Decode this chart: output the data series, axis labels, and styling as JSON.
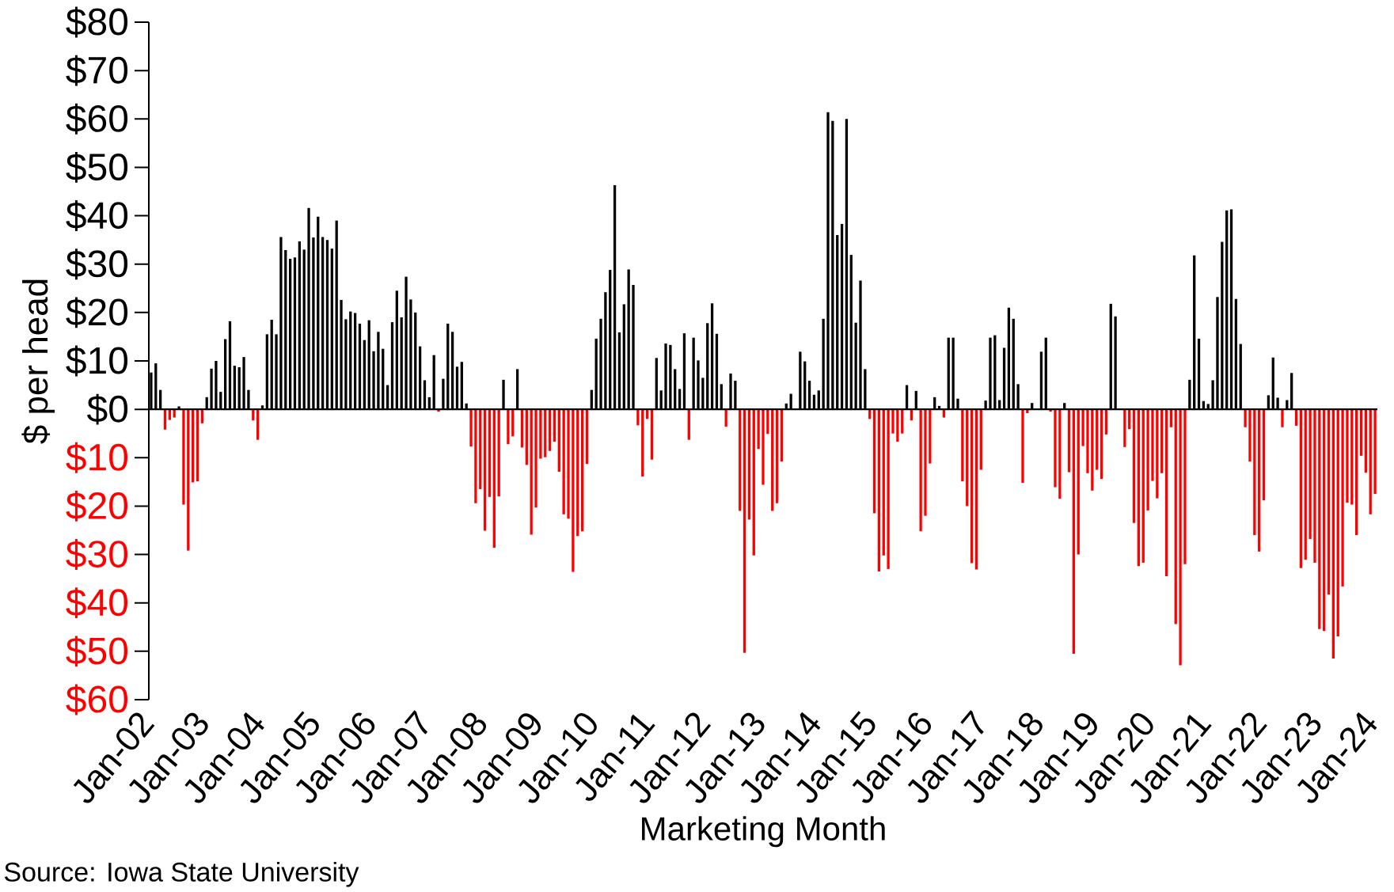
{
  "chart_data": {
    "type": "bar",
    "xlabel": "Marketing Month",
    "ylabel": "$ per head",
    "annotations": [
      "Source: Iowa State University"
    ],
    "xlim": [
      "2002-01",
      "2024-02"
    ],
    "xticks": [
      {
        "value": "2002-01",
        "label": "Jan-02"
      },
      {
        "value": "2003-01",
        "label": "Jan-03"
      },
      {
        "value": "2004-01",
        "label": "Jan-04"
      },
      {
        "value": "2005-01",
        "label": "Jan-05"
      },
      {
        "value": "2006-01",
        "label": "Jan-06"
      },
      {
        "value": "2007-01",
        "label": "Jan-07"
      },
      {
        "value": "2008-01",
        "label": "Jan-08"
      },
      {
        "value": "2009-01",
        "label": "Jan-09"
      },
      {
        "value": "2010-01",
        "label": "Jan-10"
      },
      {
        "value": "2011-01",
        "label": "Jan-11"
      },
      {
        "value": "2012-01",
        "label": "Jan-12"
      },
      {
        "value": "2013-01",
        "label": "Jan-13"
      },
      {
        "value": "2014-01",
        "label": "Jan-14"
      },
      {
        "value": "2015-01",
        "label": "Jan-15"
      },
      {
        "value": "2016-01",
        "label": "Jan-16"
      },
      {
        "value": "2017-01",
        "label": "Jan-17"
      },
      {
        "value": "2018-01",
        "label": "Jan-18"
      },
      {
        "value": "2019-01",
        "label": "Jan-19"
      },
      {
        "value": "2020-01",
        "label": "Jan-20"
      },
      {
        "value": "2021-01",
        "label": "Jan-21"
      },
      {
        "value": "2022-01",
        "label": "Jan-22"
      },
      {
        "value": "2023-01",
        "label": "Jan-23"
      },
      {
        "value": "2024-01",
        "label": "Jan-24"
      }
    ],
    "ylim": [
      -60,
      80
    ],
    "yticks": [
      {
        "value": -60,
        "label": "$60"
      },
      {
        "value": -50,
        "label": "$50"
      },
      {
        "value": -40,
        "label": "$40"
      },
      {
        "value": -30,
        "label": "$30"
      },
      {
        "value": -20,
        "label": "$20"
      },
      {
        "value": -10,
        "label": "$10"
      },
      {
        "value": 0,
        "label": "$0"
      },
      {
        "value": 10,
        "label": "$10"
      },
      {
        "value": 20,
        "label": "$20"
      },
      {
        "value": 30,
        "label": "$30"
      },
      {
        "value": 40,
        "label": "$40"
      },
      {
        "value": 50,
        "label": "$50"
      },
      {
        "value": 60,
        "label": "$60"
      },
      {
        "value": 70,
        "label": "$70"
      },
      {
        "value": 80,
        "label": "$80"
      }
    ],
    "x": [
      "2002-01",
      "2002-02",
      "2002-03",
      "2002-04",
      "2002-05",
      "2002-06",
      "2002-07",
      "2002-08",
      "2002-09",
      "2002-10",
      "2002-11",
      "2002-12",
      "2003-01",
      "2003-02",
      "2003-03",
      "2003-04",
      "2003-05",
      "2003-06",
      "2003-07",
      "2003-08",
      "2003-09",
      "2003-10",
      "2003-11",
      "2003-12",
      "2004-01",
      "2004-02",
      "2004-03",
      "2004-04",
      "2004-05",
      "2004-06",
      "2004-07",
      "2004-08",
      "2004-09",
      "2004-10",
      "2004-11",
      "2004-12",
      "2005-01",
      "2005-02",
      "2005-03",
      "2005-04",
      "2005-05",
      "2005-06",
      "2005-07",
      "2005-08",
      "2005-09",
      "2005-10",
      "2005-11",
      "2005-12",
      "2006-01",
      "2006-02",
      "2006-03",
      "2006-04",
      "2006-05",
      "2006-06",
      "2006-07",
      "2006-08",
      "2006-09",
      "2006-10",
      "2006-11",
      "2006-12",
      "2007-01",
      "2007-02",
      "2007-03",
      "2007-04",
      "2007-05",
      "2007-06",
      "2007-07",
      "2007-08",
      "2007-09",
      "2007-10",
      "2007-11",
      "2007-12",
      "2008-01",
      "2008-02",
      "2008-03",
      "2008-04",
      "2008-05",
      "2008-06",
      "2008-07",
      "2008-08",
      "2008-09",
      "2008-10",
      "2008-11",
      "2008-12",
      "2009-01",
      "2009-02",
      "2009-03",
      "2009-04",
      "2009-05",
      "2009-06",
      "2009-07",
      "2009-08",
      "2009-09",
      "2009-10",
      "2009-11",
      "2009-12",
      "2010-01",
      "2010-02",
      "2010-03",
      "2010-04",
      "2010-05",
      "2010-06",
      "2010-07",
      "2010-08",
      "2010-09",
      "2010-10",
      "2010-11",
      "2010-12",
      "2011-01",
      "2011-02",
      "2011-03",
      "2011-04",
      "2011-05",
      "2011-06",
      "2011-07",
      "2011-08",
      "2011-09",
      "2011-10",
      "2011-11",
      "2011-12",
      "2012-01",
      "2012-02",
      "2012-03",
      "2012-04",
      "2012-05",
      "2012-06",
      "2012-07",
      "2012-08",
      "2012-09",
      "2012-10",
      "2012-11",
      "2012-12",
      "2013-01",
      "2013-02",
      "2013-03",
      "2013-04",
      "2013-05",
      "2013-06",
      "2013-07",
      "2013-08",
      "2013-09",
      "2013-10",
      "2013-11",
      "2013-12",
      "2014-01",
      "2014-02",
      "2014-03",
      "2014-04",
      "2014-05",
      "2014-06",
      "2014-07",
      "2014-08",
      "2014-09",
      "2014-10",
      "2014-11",
      "2014-12",
      "2015-01",
      "2015-02",
      "2015-03",
      "2015-04",
      "2015-05",
      "2015-06",
      "2015-07",
      "2015-08",
      "2015-09",
      "2015-10",
      "2015-11",
      "2015-12",
      "2016-01",
      "2016-02",
      "2016-03",
      "2016-04",
      "2016-05",
      "2016-06",
      "2016-07",
      "2016-08",
      "2016-09",
      "2016-10",
      "2016-11",
      "2016-12",
      "2017-01",
      "2017-02",
      "2017-03",
      "2017-04",
      "2017-05",
      "2017-06",
      "2017-07",
      "2017-08",
      "2017-09",
      "2017-10",
      "2017-11",
      "2017-12",
      "2018-01",
      "2018-02",
      "2018-03",
      "2018-04",
      "2018-05",
      "2018-06",
      "2018-07",
      "2018-08",
      "2018-09",
      "2018-10",
      "2018-11",
      "2018-12",
      "2019-01",
      "2019-02",
      "2019-03",
      "2019-04",
      "2019-05",
      "2019-06",
      "2019-07",
      "2019-08",
      "2019-09",
      "2019-10",
      "2019-11",
      "2019-12",
      "2020-01",
      "2020-02",
      "2020-03",
      "2020-04",
      "2020-05",
      "2020-06",
      "2020-07",
      "2020-08",
      "2020-09",
      "2020-10",
      "2020-11",
      "2020-12",
      "2021-01",
      "2021-02",
      "2021-03",
      "2021-04",
      "2021-05",
      "2021-06",
      "2021-07",
      "2021-08",
      "2021-09",
      "2021-10",
      "2021-11",
      "2021-12",
      "2022-01",
      "2022-02",
      "2022-03",
      "2022-04",
      "2022-05",
      "2022-06",
      "2022-07",
      "2022-08",
      "2022-09",
      "2022-10",
      "2022-11",
      "2022-12",
      "2023-01",
      "2023-02",
      "2023-03",
      "2023-04",
      "2023-05",
      "2023-06",
      "2023-07",
      "2023-08",
      "2023-09",
      "2023-10",
      "2023-11",
      "2023-12",
      "2024-01"
    ],
    "values": [
      7.6,
      9.5,
      4,
      -4.2,
      -2.2,
      -1.7,
      0.6,
      -19.7,
      -29.2,
      -15.1,
      -14.9,
      -2.9,
      2.5,
      8.4,
      10,
      3.6,
      14.5,
      18.2,
      9,
      8.7,
      10.8,
      4,
      -2.3,
      -6.3,
      0.8,
      15.5,
      18.5,
      15.5,
      35.6,
      32.9,
      31.1,
      31.4,
      34.7,
      33,
      41.6,
      35.5,
      39.8,
      35.6,
      35,
      33.2,
      39,
      22.6,
      18.6,
      20.2,
      19.9,
      17.7,
      14.3,
      18.4,
      12,
      16,
      12.5,
      5,
      18,
      24.5,
      19,
      27.4,
      22.7,
      20,
      13,
      6,
      2.5,
      11.2,
      -0.5,
      6.3,
      17.7,
      16,
      8.8,
      9.8,
      1.2,
      -7.7,
      -19.4,
      -16.5,
      -25.1,
      -18.1,
      -28.6,
      -18,
      6.1,
      -7.2,
      -5.6,
      8.3,
      -7.9,
      -11.5,
      -25.9,
      -20.3,
      -10.2,
      -9.9,
      -8.6,
      -6.7,
      -12.9,
      -21.7,
      -22.6,
      -33.6,
      -26.2,
      -25.2,
      -11.3,
      4,
      14.6,
      18.7,
      24.2,
      28.8,
      46.3,
      15.9,
      21.7,
      28.9,
      25.7,
      -3.3,
      -13.9,
      -2,
      -10.4,
      10.6,
      3.9,
      13.6,
      13.3,
      8.3,
      4.2,
      15.7,
      -6.3,
      14.8,
      10.1,
      6.5,
      17.8,
      21.9,
      15.6,
      5.2,
      -3.6,
      7.4,
      5.9,
      -21,
      -50.3,
      -22.8,
      -30.2,
      -8.2,
      -15.6,
      -5.1,
      -21,
      -19.4,
      -10.8,
      1.2,
      3.2,
      null,
      11.9,
      9.9,
      5.9,
      3,
      3.9,
      18.7,
      61.4,
      59.6,
      36,
      38.3,
      60,
      31.9,
      17.9,
      26.6,
      8.3,
      -2,
      -21.5,
      -33.5,
      -30.2,
      -33,
      -5,
      -6.7,
      -5,
      5,
      -2.3,
      3.8,
      -25.2,
      -22,
      -11.2,
      2.5,
      0.7,
      -1.7,
      14.8,
      14.8,
      2.2,
      -14.9,
      -20,
      -31.8,
      -33.1,
      -12.5,
      1.8,
      14.8,
      15.3,
      1.9,
      12.7,
      21,
      18.7,
      5.2,
      -15.2,
      -0.8,
      1.3,
      null,
      11.9,
      14.8,
      -0.5,
      -16.1,
      -18.5,
      1.3,
      -13,
      -50.5,
      -30,
      -7.6,
      -13.2,
      -16.8,
      -12.5,
      -14.4,
      -5.2,
      21.8,
      19.2,
      null,
      -7.8,
      -4.1,
      -23.5,
      -32.4,
      -31.7,
      -20.9,
      -14.8,
      -18.4,
      -13.2,
      -34.5,
      -3.7,
      -44.4,
      -52.9,
      -32,
      6.1,
      31.8,
      14.6,
      1.7,
      1.1,
      6,
      23.2,
      34.6,
      41.1,
      41.3,
      22.8,
      13.5,
      -3.7,
      -10.8,
      -26,
      -29.4,
      -18.8,
      2.9,
      10.7,
      2.4,
      -3.7,
      1.9,
      7.5,
      -3.4,
      -32.8,
      -31.1,
      -26.8,
      -31.7,
      -45.4,
      -45.8,
      -38.3,
      -51.5,
      -46.9,
      -36.6,
      -19.3,
      -19.7,
      -26,
      -9.6,
      -13.1,
      -21.7,
      -17.5
    ],
    "colors": [
      "#000000",
      "#000000",
      "#000000",
      "#ff0000",
      "#ff0000",
      "#ff0000",
      "#000000",
      "#ff0000",
      "#ff0000",
      "#ff0000",
      "#ff0000",
      "#ff0000",
      "#000000",
      "#000000",
      "#000000",
      "#000000",
      "#000000",
      "#000000",
      "#000000",
      "#000000",
      "#000000",
      "#000000",
      "#ff0000",
      "#ff0000",
      "#000000",
      "#000000",
      "#000000",
      "#000000",
      "#000000",
      "#000000",
      "#000000",
      "#000000",
      "#000000",
      "#000000",
      "#000000",
      "#000000",
      "#000000",
      "#000000",
      "#000000",
      "#000000",
      "#000000",
      "#000000",
      "#000000",
      "#000000",
      "#000000",
      "#000000",
      "#000000",
      "#000000",
      "#000000",
      "#000000",
      "#000000",
      "#000000",
      "#000000",
      "#000000",
      "#000000",
      "#000000",
      "#000000",
      "#000000",
      "#000000",
      "#000000",
      "#000000",
      "#000000",
      "#ff0000",
      "#000000",
      "#000000",
      "#000000",
      "#000000",
      "#000000",
      "#000000",
      "#ff0000",
      "#ff0000",
      "#ff0000",
      "#ff0000",
      "#ff0000",
      "#ff0000",
      "#ff0000",
      "#000000",
      "#ff0000",
      "#ff0000",
      "#000000",
      "#ff0000",
      "#ff0000",
      "#ff0000",
      "#ff0000",
      "#ff0000",
      "#ff0000",
      "#ff0000",
      "#ff0000",
      "#ff0000",
      "#ff0000",
      "#ff0000",
      "#ff0000",
      "#ff0000",
      "#ff0000",
      "#ff0000",
      "#000000",
      "#000000",
      "#000000",
      "#000000",
      "#000000",
      "#000000",
      "#000000",
      "#000000",
      "#000000",
      "#000000",
      "#ff0000",
      "#ff0000",
      "#ff0000",
      "#ff0000",
      "#000000",
      "#000000",
      "#000000",
      "#000000",
      "#000000",
      "#000000",
      "#000000",
      "#ff0000",
      "#000000",
      "#000000",
      "#000000",
      "#000000",
      "#000000",
      "#000000",
      "#000000",
      "#ff0000",
      "#000000",
      "#000000",
      "#ff0000",
      "#ff0000",
      "#ff0000",
      "#ff0000",
      "#ff0000",
      "#ff0000",
      "#ff0000",
      "#ff0000",
      "#ff0000",
      "#ff0000",
      "#000000",
      "#000000",
      "#000000",
      "#000000",
      "#000000",
      "#000000",
      "#000000",
      "#000000",
      "#000000",
      "#000000",
      "#000000",
      "#000000",
      "#000000",
      "#000000",
      "#000000",
      "#000000",
      "#000000",
      "#000000",
      "#ff0000",
      "#ff0000",
      "#ff0000",
      "#ff0000",
      "#ff0000",
      "#ff0000",
      "#ff0000",
      "#ff0000",
      "#000000",
      "#ff0000",
      "#000000",
      "#ff0000",
      "#ff0000",
      "#ff0000",
      "#000000",
      "#000000",
      "#ff0000",
      "#000000",
      "#000000",
      "#000000",
      "#ff0000",
      "#ff0000",
      "#ff0000",
      "#ff0000",
      "#ff0000",
      "#000000",
      "#000000",
      "#000000",
      "#000000",
      "#000000",
      "#000000",
      "#000000",
      "#000000",
      "#ff0000",
      "#ff0000",
      "#000000",
      "#000000",
      "#000000",
      "#000000",
      "#ff0000",
      "#ff0000",
      "#ff0000",
      "#000000",
      "#ff0000",
      "#ff0000",
      "#ff0000",
      "#ff0000",
      "#ff0000",
      "#ff0000",
      "#ff0000",
      "#ff0000",
      "#ff0000",
      "#000000",
      "#000000",
      "#000000",
      "#ff0000",
      "#ff0000",
      "#ff0000",
      "#ff0000",
      "#ff0000",
      "#ff0000",
      "#ff0000",
      "#ff0000",
      "#ff0000",
      "#ff0000",
      "#ff0000",
      "#ff0000",
      "#ff0000",
      "#ff0000",
      "#000000",
      "#000000",
      "#000000",
      "#000000",
      "#000000",
      "#000000",
      "#000000",
      "#000000",
      "#000000",
      "#000000",
      "#000000",
      "#000000",
      "#ff0000",
      "#ff0000",
      "#ff0000",
      "#ff0000",
      "#ff0000",
      "#000000",
      "#000000",
      "#000000",
      "#ff0000",
      "#000000",
      "#000000",
      "#ff0000",
      "#ff0000",
      "#ff0000",
      "#ff0000",
      "#ff0000",
      "#ff0000",
      "#ff0000",
      "#ff0000",
      "#ff0000",
      "#ff0000",
      "#ff0000",
      "#ff0000",
      "#ff0000",
      "#ff0000",
      "#ff0000",
      "#ff0000",
      "#ff0000",
      "#ff0000"
    ]
  }
}
